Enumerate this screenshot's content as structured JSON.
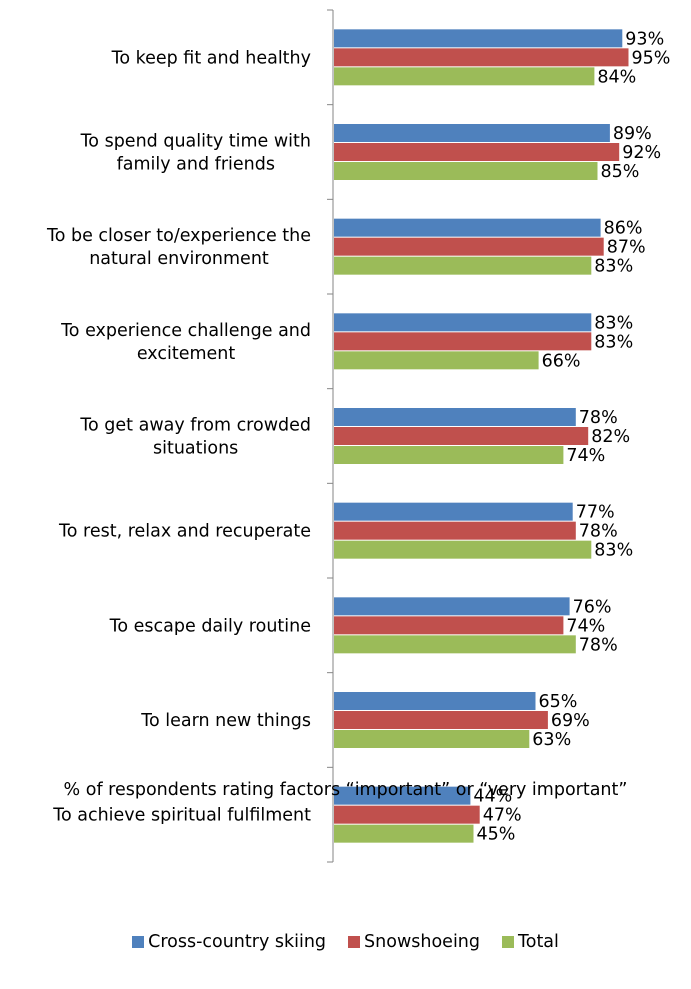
{
  "chart_data": {
    "type": "bar",
    "orientation": "horizontal",
    "categories": [
      [
        "To keep fit and healthy"
      ],
      [
        "To spend quality time with",
        "family and friends"
      ],
      [
        "To be closer to/experience the",
        "natural environment"
      ],
      [
        "To experience challenge and",
        "excitement"
      ],
      [
        "To get away from crowded",
        "situations"
      ],
      [
        "To rest, relax and recuperate"
      ],
      [
        "To escape daily routine"
      ],
      [
        "To learn new things"
      ],
      [
        "To achieve spiritual fulfilment"
      ]
    ],
    "series": [
      {
        "name": "Cross-country skiing",
        "color": "#4F81BD",
        "values": [
          93,
          89,
          86,
          83,
          78,
          77,
          76,
          65,
          44
        ]
      },
      {
        "name": "Snowshoeing",
        "color": "#C0504D",
        "values": [
          95,
          92,
          87,
          83,
          82,
          78,
          74,
          69,
          47
        ]
      },
      {
        "name": "Total",
        "color": "#9BBB59",
        "values": [
          84,
          85,
          83,
          66,
          74,
          83,
          78,
          63,
          45
        ]
      }
    ],
    "value_suffix": "%",
    "xlabel": "% of respondents rating factors “important” or “very important”",
    "xlim": [
      0,
      100
    ],
    "grid": false,
    "legend_position": "bottom"
  }
}
